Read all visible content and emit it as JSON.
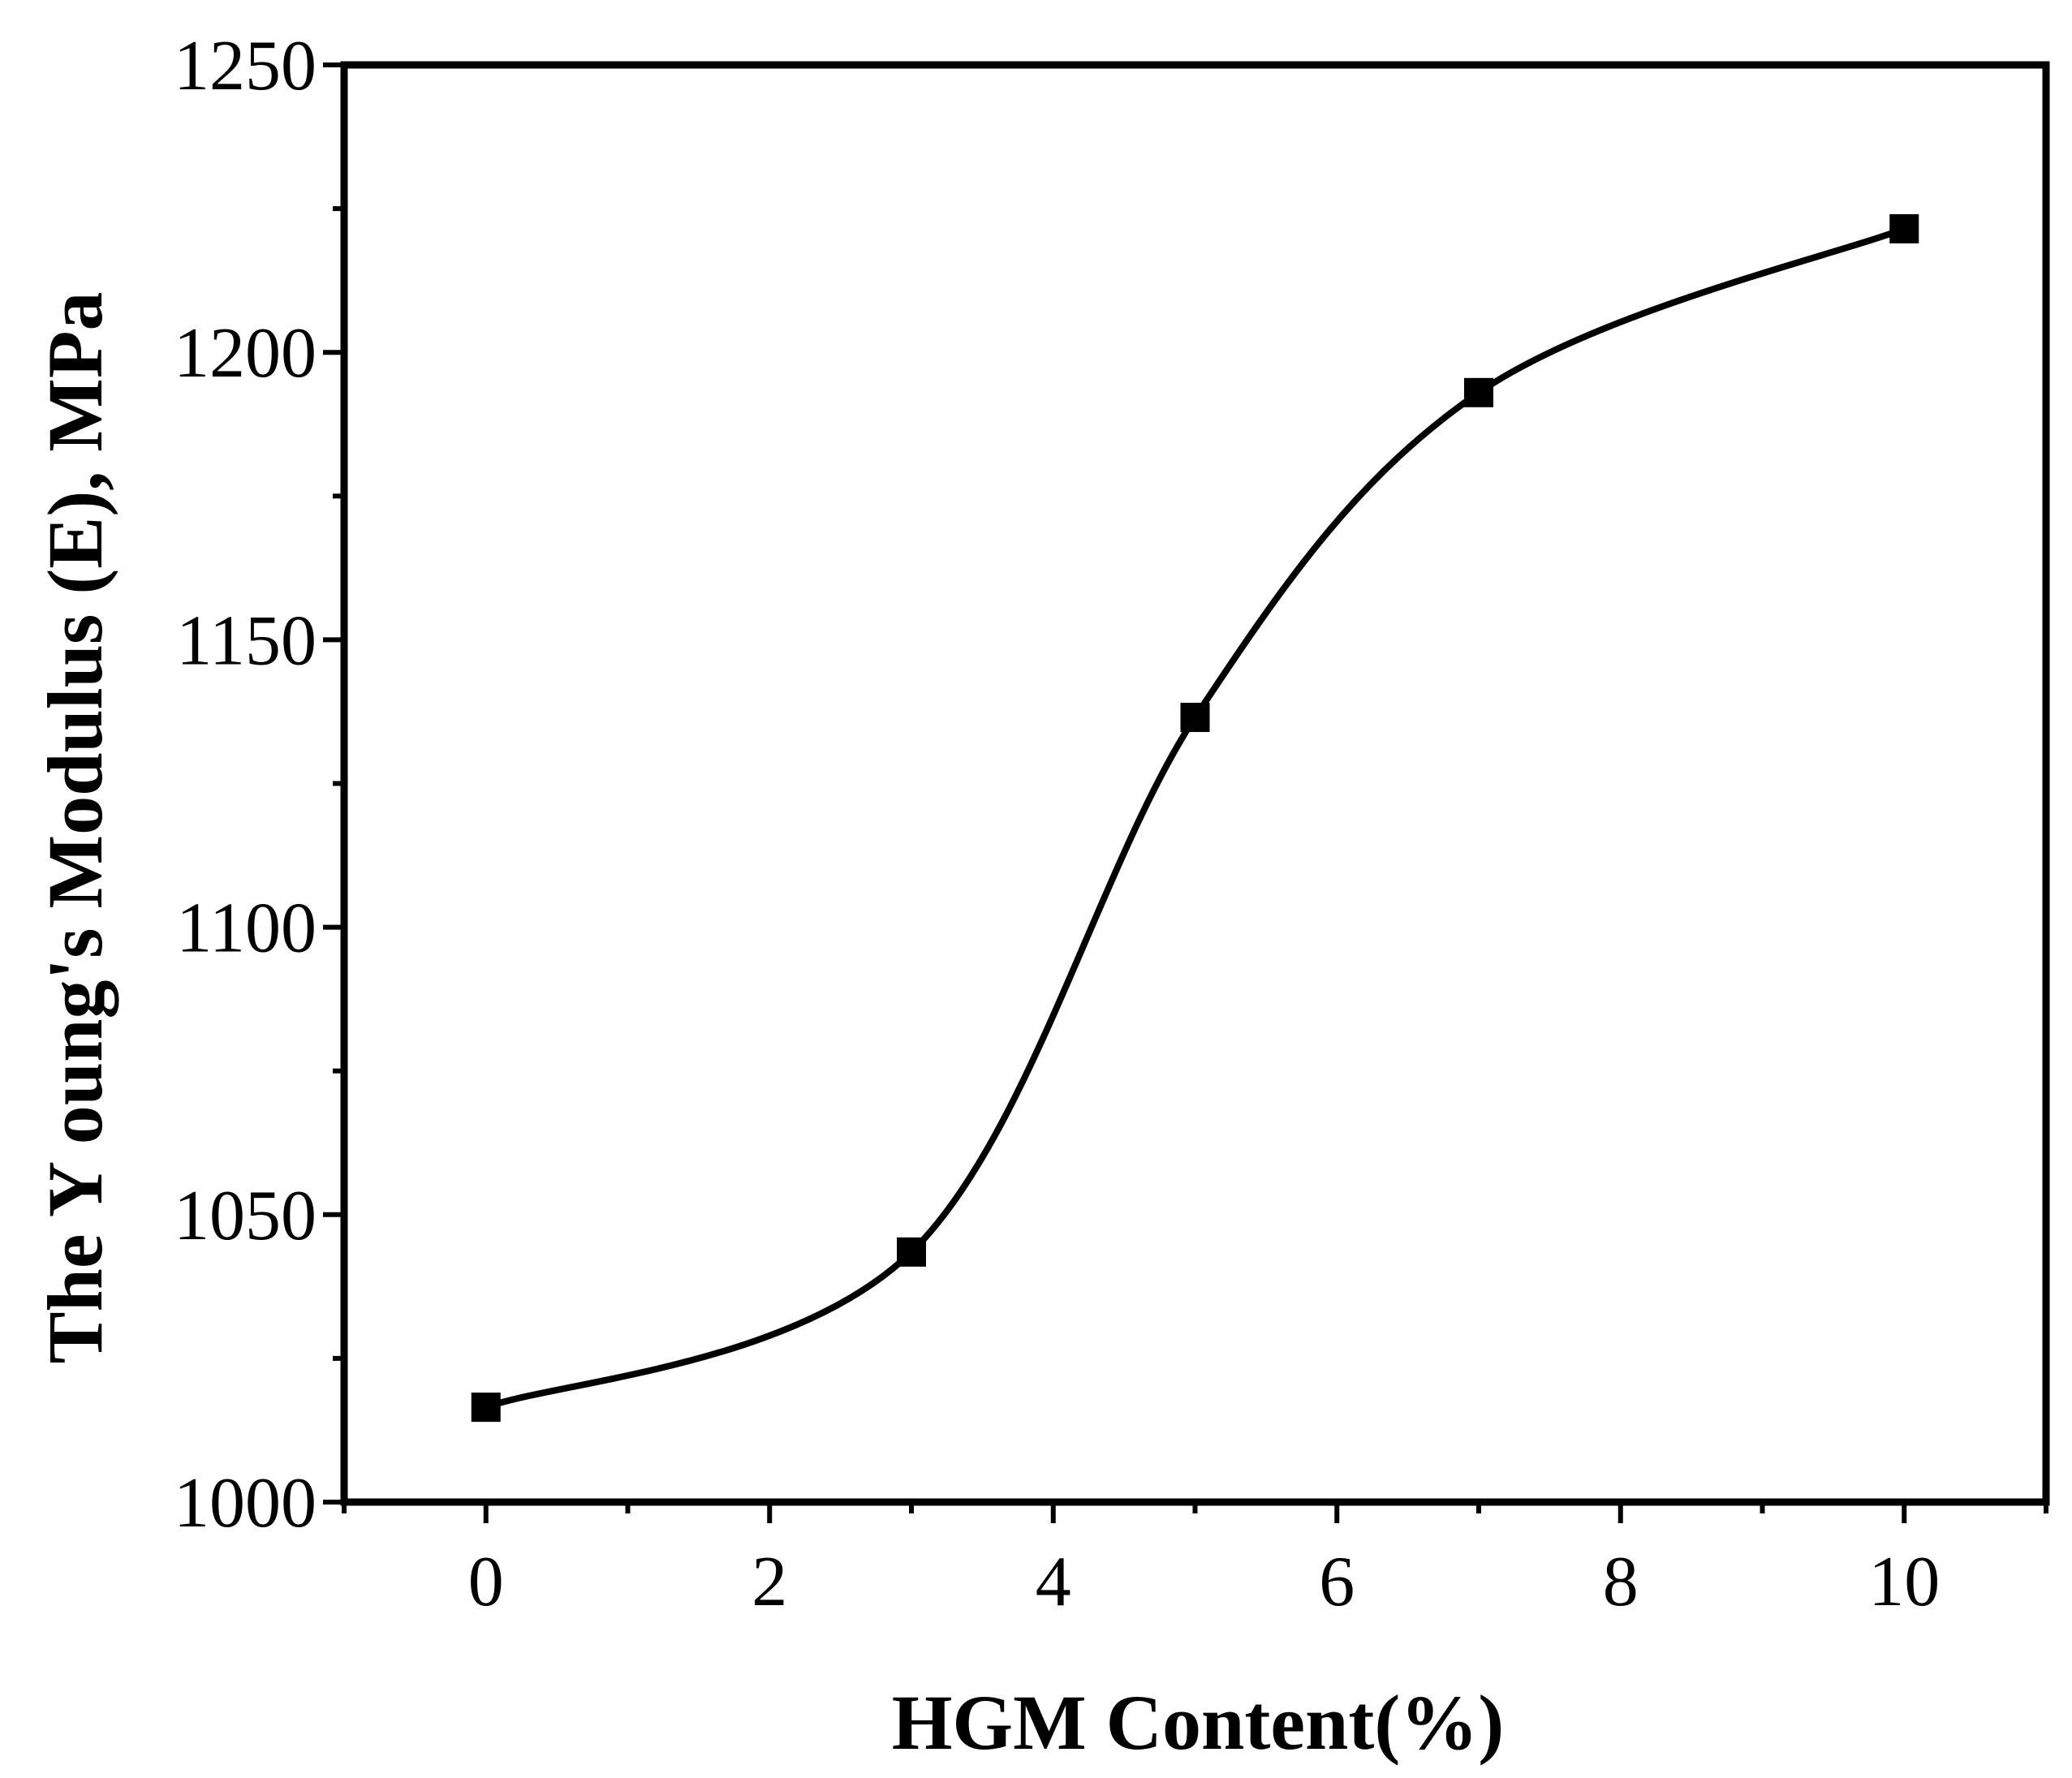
{
  "chart_data": {
    "type": "line",
    "title": "",
    "xlabel": "HGM Content(%)",
    "ylabel": "The Y oung's Modulus (E), MPa",
    "xlim": [
      -1,
      11
    ],
    "ylim": [
      1000,
      1250
    ],
    "xticks": [
      0,
      2,
      4,
      6,
      8,
      10
    ],
    "xtick_labels": [
      "0",
      "2",
      "4",
      "6",
      "8",
      "10"
    ],
    "yticks": [
      1000,
      1050,
      1100,
      1150,
      1200,
      1250
    ],
    "ytick_labels": [
      "1000",
      "1050",
      "1100",
      "1150",
      "1200",
      "1250"
    ],
    "grid": false,
    "legend": "none",
    "marker": "square",
    "line_style": "smooth",
    "color": "#000000",
    "series": [
      {
        "x": [
          0,
          3,
          5,
          7,
          10
        ],
        "y": [
          1016.5,
          1043.5,
          1136.5,
          1193,
          1221.5
        ]
      }
    ]
  }
}
